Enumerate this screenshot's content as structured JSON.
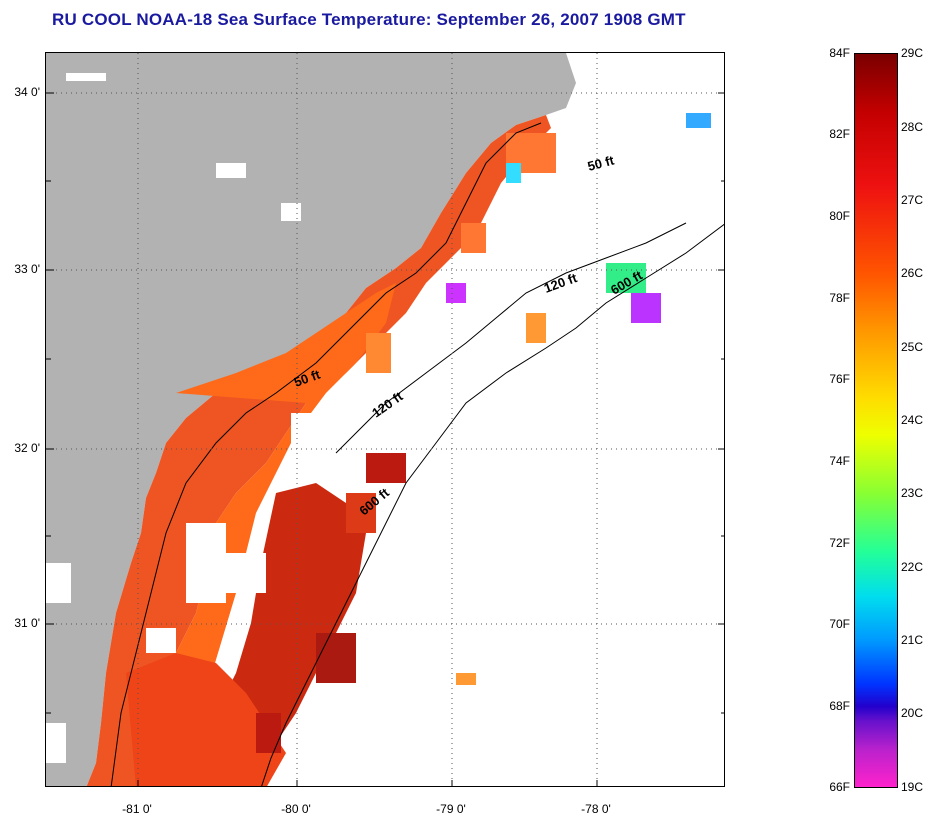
{
  "title": "RU COOL  NOAA-18  Sea Surface Temperature:  September 26, 2007 1908 GMT",
  "map": {
    "lat_labels": [
      "34 0'",
      "33 0'",
      "32 0'",
      "31 0'"
    ],
    "lon_labels": [
      "-81 0'",
      "-80 0'",
      "-79 0'",
      "-78 0'"
    ],
    "depth_labels": [
      "50 ft",
      "50 ft",
      "120 ft",
      "120 ft",
      "600 ft",
      "600 ft"
    ],
    "land_color": "#b2b2b2"
  },
  "colorbar": {
    "fahrenheit": [
      "84F",
      "82F",
      "80F",
      "78F",
      "76F",
      "74F",
      "72F",
      "70F",
      "68F",
      "66F"
    ],
    "celsius": [
      "29C",
      "28C",
      "27C",
      "26C",
      "25C",
      "24C",
      "23C",
      "22C",
      "21C",
      "20C",
      "19C"
    ]
  }
}
